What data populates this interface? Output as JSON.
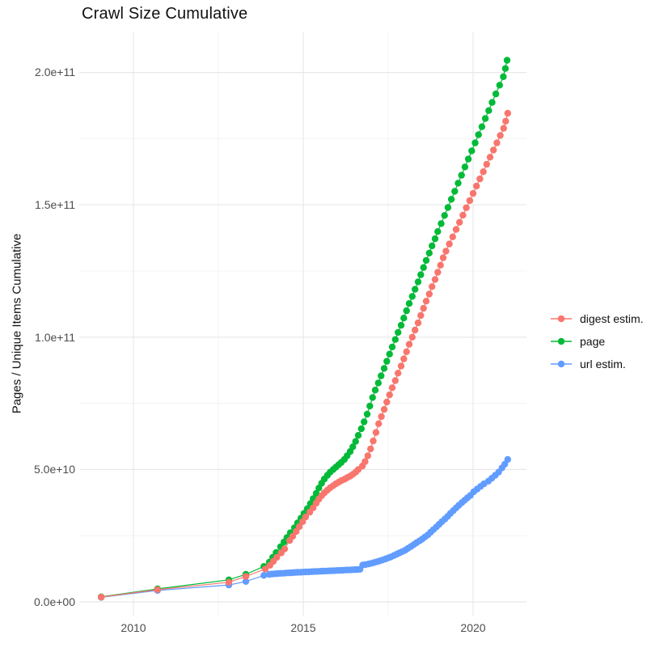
{
  "title": "Crawl Size Cumulative",
  "y_axis_label": "Pages / Unique Items Cumulative",
  "axes": {
    "y_tick_labels": [
      "2.0e+11",
      "1.5e+11",
      "1.0e+11",
      "5.0e+10",
      "0.0e+00"
    ],
    "x_tick_labels": [
      "2010",
      "2015",
      "2020"
    ]
  },
  "legend": {
    "items": [
      {
        "label": "digest estim.",
        "color": "#F8766D"
      },
      {
        "label": "page",
        "color": "#00BA38"
      },
      {
        "label": "url estim.",
        "color": "#619CFF"
      }
    ]
  },
  "colors": {
    "background": "#FFFFFF",
    "grid_major": "#E8E8E8",
    "grid_minor": "#F1F1F1",
    "axis_text": "#4D4D4D",
    "title_text": "#111111"
  },
  "chart_data": {
    "type": "scatter",
    "title": "Crawl Size Cumulative",
    "xlabel": "",
    "ylabel": "Pages / Unique Items Cumulative",
    "xlim": [
      2008.4,
      2021.6
    ],
    "ylim": [
      0,
      215000000000.0
    ],
    "grid": true,
    "legend_position": "right",
    "x_major_ticks": [
      2010,
      2015,
      2020
    ],
    "x_minor_ticks": [
      2012.5,
      2017.5
    ],
    "y_major_ticks": [
      {
        "value": 0,
        "label": "0.0e+00"
      },
      {
        "value": 50000000000.0,
        "label": "5.0e+10"
      },
      {
        "value": 100000000000.0,
        "label": "1.0e+11"
      },
      {
        "value": 150000000000.0,
        "label": "1.5e+11"
      },
      {
        "value": 200000000000.0,
        "label": "2.0e+11"
      }
    ],
    "y_minor_ticks": [
      25000000000.0,
      75000000000.0,
      125000000000.0,
      175000000000.0
    ],
    "point_units": "each point is [year (decimal), cumulative count in billions]",
    "series": [
      {
        "name": "digest estim.",
        "color": "#F8766D",
        "points": [
          [
            2009.05,
            1.8
          ],
          [
            2010.71,
            4.6
          ],
          [
            2012.81,
            7.4
          ],
          [
            2013.31,
            9.6
          ],
          [
            2013.88,
            12.4
          ],
          [
            2014.02,
            13.8
          ],
          [
            2014.12,
            15.3
          ],
          [
            2014.22,
            16.8
          ],
          [
            2014.35,
            18.5
          ],
          [
            2014.45,
            20.0
          ],
          [
            2014.6,
            23.2
          ],
          [
            2014.69,
            24.8
          ],
          [
            2014.79,
            26.6
          ],
          [
            2014.88,
            28.4
          ],
          [
            2014.98,
            30.3
          ],
          [
            2015.07,
            32.1
          ],
          [
            2015.19,
            33.9
          ],
          [
            2015.29,
            35.5
          ],
          [
            2015.38,
            37.3
          ],
          [
            2015.46,
            38.8
          ],
          [
            2015.54,
            40.1
          ],
          [
            2015.62,
            41.2
          ],
          [
            2015.71,
            42.2
          ],
          [
            2015.79,
            43.1
          ],
          [
            2015.88,
            43.9
          ],
          [
            2015.96,
            44.6
          ],
          [
            2016.04,
            45.2
          ],
          [
            2016.12,
            45.8
          ],
          [
            2016.21,
            46.3
          ],
          [
            2016.29,
            46.9
          ],
          [
            2016.38,
            47.5
          ],
          [
            2016.46,
            48.2
          ],
          [
            2016.54,
            49.0
          ],
          [
            2016.62,
            50.0
          ],
          [
            2016.74,
            51.3
          ],
          [
            2016.82,
            53.0
          ],
          [
            2016.9,
            55.2
          ],
          [
            2016.98,
            57.8
          ],
          [
            2017.06,
            60.8
          ],
          [
            2017.14,
            64.0
          ],
          [
            2017.22,
            67.3
          ],
          [
            2017.3,
            70.0
          ],
          [
            2017.38,
            72.7
          ],
          [
            2017.46,
            75.5
          ],
          [
            2017.54,
            78.2
          ],
          [
            2017.62,
            80.9
          ],
          [
            2017.71,
            83.6
          ],
          [
            2017.79,
            86.4
          ],
          [
            2017.88,
            89.1
          ],
          [
            2017.96,
            91.8
          ],
          [
            2018.04,
            94.5
          ],
          [
            2018.12,
            97.3
          ],
          [
            2018.21,
            100.0
          ],
          [
            2018.29,
            102.7
          ],
          [
            2018.38,
            105.4
          ],
          [
            2018.46,
            108.2
          ],
          [
            2018.54,
            110.9
          ],
          [
            2018.62,
            113.6
          ],
          [
            2018.71,
            116.3
          ],
          [
            2018.79,
            119.1
          ],
          [
            2018.88,
            121.8
          ],
          [
            2018.96,
            124.5
          ],
          [
            2019.04,
            127.2
          ],
          [
            2019.12,
            130.0
          ],
          [
            2019.2,
            132.5
          ],
          [
            2019.3,
            135.2
          ],
          [
            2019.4,
            137.9
          ],
          [
            2019.5,
            140.7
          ],
          [
            2019.6,
            143.4
          ],
          [
            2019.7,
            146.1
          ],
          [
            2019.8,
            148.9
          ],
          [
            2019.9,
            151.6
          ],
          [
            2020.0,
            154.3
          ],
          [
            2020.1,
            157.1
          ],
          [
            2020.2,
            159.8
          ],
          [
            2020.3,
            162.5
          ],
          [
            2020.4,
            165.3
          ],
          [
            2020.5,
            168.0
          ],
          [
            2020.6,
            170.7
          ],
          [
            2020.7,
            173.4
          ],
          [
            2020.8,
            176.2
          ],
          [
            2020.9,
            178.9
          ],
          [
            2020.96,
            181.6
          ],
          [
            2021.02,
            184.6
          ]
        ]
      },
      {
        "name": "page",
        "color": "#00BA38",
        "points": [
          [
            2009.05,
            1.9
          ],
          [
            2010.71,
            4.9
          ],
          [
            2012.81,
            8.3
          ],
          [
            2013.31,
            10.4
          ],
          [
            2013.84,
            13.4
          ],
          [
            2014.0,
            15.0
          ],
          [
            2014.1,
            16.8
          ],
          [
            2014.2,
            18.6
          ],
          [
            2014.33,
            20.8
          ],
          [
            2014.43,
            22.6
          ],
          [
            2014.52,
            24.3
          ],
          [
            2014.62,
            26.1
          ],
          [
            2014.74,
            28.0
          ],
          [
            2014.83,
            29.8
          ],
          [
            2014.93,
            31.6
          ],
          [
            2015.02,
            33.4
          ],
          [
            2015.12,
            35.2
          ],
          [
            2015.21,
            37.1
          ],
          [
            2015.29,
            39.0
          ],
          [
            2015.38,
            41.0
          ],
          [
            2015.46,
            43.0
          ],
          [
            2015.54,
            44.8
          ],
          [
            2015.62,
            46.4
          ],
          [
            2015.71,
            47.8
          ],
          [
            2015.79,
            49.0
          ],
          [
            2015.88,
            50.0
          ],
          [
            2015.96,
            50.9
          ],
          [
            2016.04,
            51.8
          ],
          [
            2016.12,
            52.7
          ],
          [
            2016.21,
            53.8
          ],
          [
            2016.29,
            55.2
          ],
          [
            2016.38,
            56.8
          ],
          [
            2016.46,
            58.6
          ],
          [
            2016.54,
            60.6
          ],
          [
            2016.62,
            62.9
          ],
          [
            2016.71,
            65.4
          ],
          [
            2016.79,
            68.0
          ],
          [
            2016.88,
            70.9
          ],
          [
            2016.96,
            74.0
          ],
          [
            2017.04,
            77.2
          ],
          [
            2017.12,
            80.0
          ],
          [
            2017.21,
            82.7
          ],
          [
            2017.29,
            85.4
          ],
          [
            2017.38,
            88.2
          ],
          [
            2017.46,
            90.9
          ],
          [
            2017.54,
            93.6
          ],
          [
            2017.62,
            96.3
          ],
          [
            2017.71,
            99.1
          ],
          [
            2017.79,
            101.8
          ],
          [
            2017.88,
            104.5
          ],
          [
            2017.96,
            107.2
          ],
          [
            2018.04,
            110.0
          ],
          [
            2018.12,
            112.7
          ],
          [
            2018.21,
            115.4
          ],
          [
            2018.29,
            118.1
          ],
          [
            2018.38,
            120.9
          ],
          [
            2018.46,
            123.6
          ],
          [
            2018.54,
            126.3
          ],
          [
            2018.62,
            129.0
          ],
          [
            2018.71,
            131.8
          ],
          [
            2018.79,
            134.5
          ],
          [
            2018.88,
            137.2
          ],
          [
            2018.96,
            139.9
          ],
          [
            2019.06,
            142.9
          ],
          [
            2019.16,
            146.0
          ],
          [
            2019.26,
            149.0
          ],
          [
            2019.36,
            152.1
          ],
          [
            2019.46,
            155.1
          ],
          [
            2019.56,
            158.2
          ],
          [
            2019.66,
            161.2
          ],
          [
            2019.76,
            164.3
          ],
          [
            2019.86,
            167.3
          ],
          [
            2019.96,
            170.4
          ],
          [
            2020.06,
            173.4
          ],
          [
            2020.16,
            176.5
          ],
          [
            2020.26,
            179.5
          ],
          [
            2020.36,
            182.6
          ],
          [
            2020.46,
            185.6
          ],
          [
            2020.56,
            188.7
          ],
          [
            2020.67,
            191.9
          ],
          [
            2020.78,
            195.2
          ],
          [
            2020.89,
            198.4
          ],
          [
            2020.95,
            201.5
          ],
          [
            2021.0,
            204.6
          ]
        ]
      },
      {
        "name": "url estim.",
        "color": "#619CFF",
        "points": [
          [
            2009.05,
            1.7
          ],
          [
            2010.71,
            4.3
          ],
          [
            2012.81,
            6.4
          ],
          [
            2013.31,
            7.7
          ],
          [
            2013.84,
            10.0
          ],
          [
            2014.0,
            10.4
          ],
          [
            2014.08,
            10.5
          ],
          [
            2014.17,
            10.6
          ],
          [
            2014.25,
            10.7
          ],
          [
            2014.33,
            10.75
          ],
          [
            2014.42,
            10.8
          ],
          [
            2014.5,
            10.9
          ],
          [
            2014.58,
            10.95
          ],
          [
            2014.67,
            11.0
          ],
          [
            2014.75,
            11.1
          ],
          [
            2014.83,
            11.15
          ],
          [
            2014.92,
            11.2
          ],
          [
            2015.0,
            11.25
          ],
          [
            2015.08,
            11.3
          ],
          [
            2015.17,
            11.35
          ],
          [
            2015.25,
            11.4
          ],
          [
            2015.33,
            11.45
          ],
          [
            2015.42,
            11.5
          ],
          [
            2015.5,
            11.55
          ],
          [
            2015.58,
            11.6
          ],
          [
            2015.67,
            11.65
          ],
          [
            2015.75,
            11.7
          ],
          [
            2015.83,
            11.75
          ],
          [
            2015.92,
            11.8
          ],
          [
            2016.0,
            11.85
          ],
          [
            2016.08,
            11.9
          ],
          [
            2016.17,
            11.95
          ],
          [
            2016.25,
            12.0
          ],
          [
            2016.33,
            12.05
          ],
          [
            2016.42,
            12.1
          ],
          [
            2016.5,
            12.15
          ],
          [
            2016.58,
            12.2
          ],
          [
            2016.67,
            12.3
          ],
          [
            2016.75,
            13.9
          ],
          [
            2016.83,
            14.1
          ],
          [
            2016.92,
            14.3
          ],
          [
            2017.0,
            14.55
          ],
          [
            2017.08,
            14.85
          ],
          [
            2017.17,
            15.15
          ],
          [
            2017.25,
            15.45
          ],
          [
            2017.33,
            15.8
          ],
          [
            2017.42,
            16.2
          ],
          [
            2017.5,
            16.6
          ],
          [
            2017.58,
            17.0
          ],
          [
            2017.67,
            17.5
          ],
          [
            2017.75,
            18.0
          ],
          [
            2017.83,
            18.5
          ],
          [
            2017.92,
            19.0
          ],
          [
            2018.0,
            19.5
          ],
          [
            2018.08,
            20.2
          ],
          [
            2018.17,
            20.9
          ],
          [
            2018.25,
            21.6
          ],
          [
            2018.33,
            22.3
          ],
          [
            2018.42,
            23.0
          ],
          [
            2018.5,
            23.7
          ],
          [
            2018.58,
            24.5
          ],
          [
            2018.67,
            25.3
          ],
          [
            2018.75,
            26.3
          ],
          [
            2018.83,
            27.3
          ],
          [
            2018.92,
            28.3
          ],
          [
            2019.0,
            29.3
          ],
          [
            2019.08,
            30.3
          ],
          [
            2019.17,
            31.3
          ],
          [
            2019.25,
            32.3
          ],
          [
            2019.33,
            33.4
          ],
          [
            2019.42,
            34.5
          ],
          [
            2019.5,
            35.5
          ],
          [
            2019.58,
            36.5
          ],
          [
            2019.67,
            37.5
          ],
          [
            2019.75,
            38.4
          ],
          [
            2019.83,
            39.3
          ],
          [
            2019.92,
            40.2
          ],
          [
            2020.02,
            41.6
          ],
          [
            2020.12,
            42.6
          ],
          [
            2020.22,
            43.6
          ],
          [
            2020.32,
            44.6
          ],
          [
            2020.45,
            45.6
          ],
          [
            2020.55,
            46.7
          ],
          [
            2020.65,
            47.8
          ],
          [
            2020.75,
            49.0
          ],
          [
            2020.85,
            50.6
          ],
          [
            2020.93,
            52.0
          ],
          [
            2021.02,
            53.8
          ]
        ]
      }
    ]
  }
}
